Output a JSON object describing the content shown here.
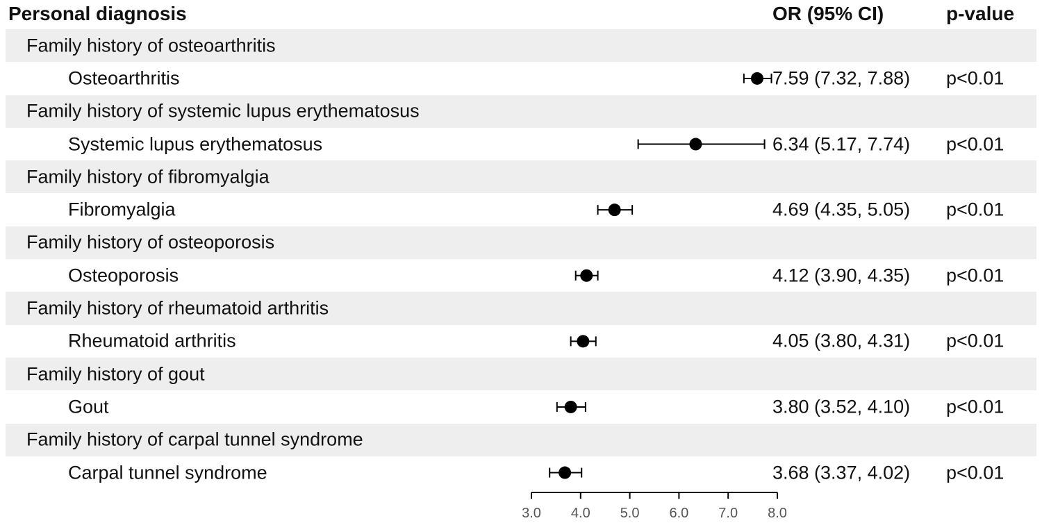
{
  "header": {
    "diagnosis": "Personal diagnosis",
    "or_ci": "OR (95% CI)",
    "pvalue": "p-value"
  },
  "rows": [
    {
      "family": "Family history of osteoarthritis",
      "diagnosis": "Osteoarthritis",
      "or_text": "7.59 (7.32, 7.88)",
      "p": "p<0.01"
    },
    {
      "family": "Family history of systemic lupus erythematosus",
      "diagnosis": "Systemic lupus erythematosus",
      "or_text": "6.34 (5.17, 7.74)",
      "p": "p<0.01"
    },
    {
      "family": "Family history of fibromyalgia",
      "diagnosis": "Fibromyalgia",
      "or_text": "4.69 (4.35, 5.05)",
      "p": "p<0.01"
    },
    {
      "family": "Family history of osteoporosis",
      "diagnosis": "Osteoporosis",
      "or_text": "4.12 (3.90, 4.35)",
      "p": "p<0.01"
    },
    {
      "family": "Family history of rheumatoid arthritis",
      "diagnosis": "Rheumatoid arthritis",
      "or_text": "4.05 (3.80, 4.31)",
      "p": "p<0.01"
    },
    {
      "family": "Family history of gout",
      "diagnosis": "Gout",
      "or_text": "3.80 (3.52, 4.10)",
      "p": "p<0.01"
    },
    {
      "family": "Family history of carpal tunnel syndrome",
      "diagnosis": "Carpal tunnel syndrome",
      "or_text": "3.68 (3.37, 4.02)",
      "p": "p<0.01"
    }
  ],
  "chart_data": {
    "type": "forest",
    "categories": [
      "Osteoarthritis",
      "Systemic lupus erythematosus",
      "Fibromyalgia",
      "Osteoporosis",
      "Rheumatoid arthritis",
      "Gout",
      "Carpal tunnel syndrome"
    ],
    "estimate": [
      7.59,
      6.34,
      4.69,
      4.12,
      4.05,
      3.8,
      3.68
    ],
    "lower": [
      7.32,
      5.17,
      4.35,
      3.9,
      3.8,
      3.52,
      3.37
    ],
    "upper": [
      7.88,
      7.74,
      5.05,
      4.35,
      4.31,
      4.1,
      4.02
    ],
    "xlim": [
      3.0,
      8.0
    ],
    "xticks": [
      "3.0",
      "4.0",
      "5.0",
      "6.0",
      "7.0",
      "8.0"
    ],
    "grid": false,
    "marker_color": "#000000"
  }
}
